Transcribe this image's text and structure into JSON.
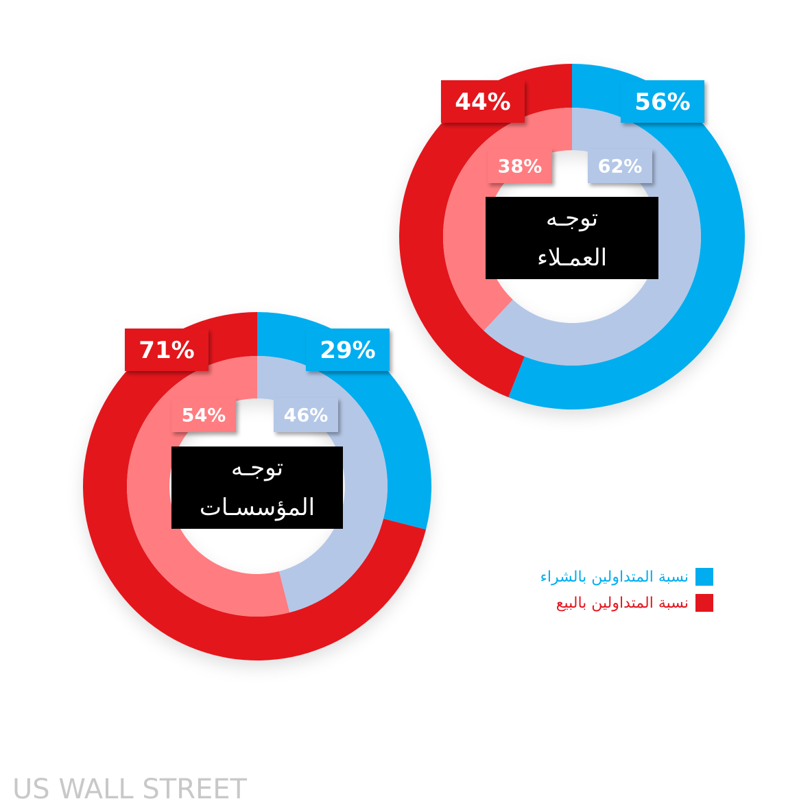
{
  "colors": {
    "buy_outer": "#00adef",
    "sell_outer": "#e3161e",
    "buy_inner": "#b4c7e7",
    "sell_inner": "#ff7c80",
    "center_box": "#000000",
    "watermark": "#c8c8c8"
  },
  "chart_data": [
    {
      "type": "pie",
      "style": "nested-donut",
      "title_lines": [
        "توجـه",
        "العمـلاء"
      ],
      "outer": [
        {
          "series": "buy",
          "value": 56,
          "label": "56%"
        },
        {
          "series": "sell",
          "value": 44,
          "label": "44%"
        }
      ],
      "inner": [
        {
          "series": "buy",
          "value": 62,
          "label": "62%"
        },
        {
          "series": "sell",
          "value": 38,
          "label": "38%"
        }
      ]
    },
    {
      "type": "pie",
      "style": "nested-donut",
      "title_lines": [
        "توجـه",
        "المؤسسـات"
      ],
      "outer": [
        {
          "series": "buy",
          "value": 29,
          "label": "29%"
        },
        {
          "series": "sell",
          "value": 71,
          "label": "71%"
        }
      ],
      "inner": [
        {
          "series": "buy",
          "value": 46,
          "label": "46%"
        },
        {
          "series": "sell",
          "value": 54,
          "label": "54%"
        }
      ]
    }
  ],
  "legend": {
    "placement": "right",
    "items": [
      {
        "series": "buy",
        "label": "نسبة المتداولين بالشراء",
        "color": "#00adef"
      },
      {
        "series": "sell",
        "label": "نسبة المتداولين بالبيع",
        "color": "#e3161e"
      }
    ]
  },
  "watermark": {
    "text": "US WALL STREET"
  }
}
